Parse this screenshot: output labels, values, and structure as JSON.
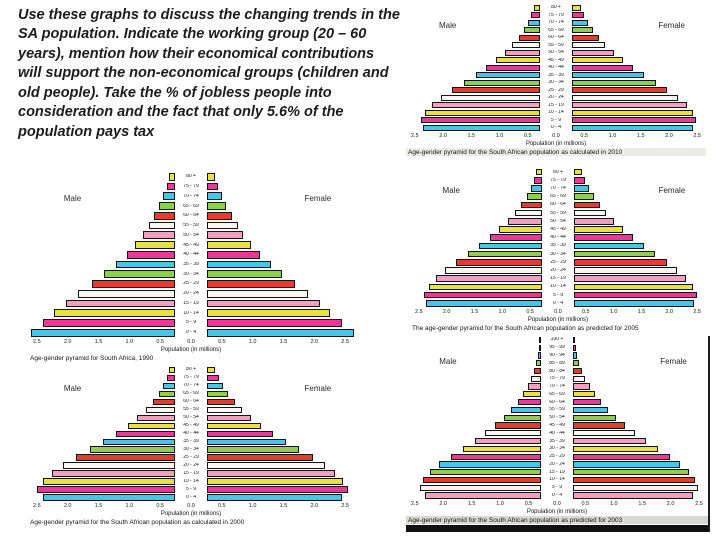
{
  "slide": {
    "question_text": "Use these graphs to discuss the changing trends in the SA population. Indicate the working group (20 – 60 years), mention how their economical contributions will support the non-economical groups (children and old people). Take the % of jobless people into consideration and the fact that only 5.6% of the population pays tax"
  },
  "style": {
    "bar_colors": [
      "#e8e23c",
      "#ea3a96",
      "#44c7e8",
      "#8ed047",
      "#e63b33",
      "#f8f8ee",
      "#f2a0c0"
    ],
    "bar_border": "#141414"
  },
  "chart_data": [
    {
      "type": "bar",
      "subtype": "population-pyramid",
      "caption": "Age-gender pyramid for South Africa, 1990",
      "male_label": "Male",
      "female_label": "Female",
      "xlabel": "Population (in millions)",
      "xmax": 2.5,
      "xticks": [
        "2.5",
        "2.0",
        "1.5",
        "1.0",
        "0.5",
        "0.0",
        "0.5",
        "1.0",
        "1.5",
        "2.0",
        "2.5"
      ],
      "age_groups": [
        "80 +",
        "75 - 79",
        "70 - 74",
        "65 - 69",
        "60 - 64",
        "55 - 59",
        "50 - 54",
        "45 - 49",
        "40 - 44",
        "35 - 39",
        "30 - 34",
        "25 - 29",
        "20 - 24",
        "15 - 19",
        "10 - 14",
        "5 - 9",
        "0 - 4"
      ],
      "series": [
        {
          "name": "Male",
          "values": [
            0.1,
            0.14,
            0.2,
            0.28,
            0.36,
            0.45,
            0.55,
            0.68,
            0.82,
            1.0,
            1.2,
            1.42,
            1.65,
            1.85,
            2.05,
            2.25,
            2.45
          ]
        },
        {
          "name": "Female",
          "values": [
            0.14,
            0.18,
            0.25,
            0.33,
            0.42,
            0.52,
            0.62,
            0.75,
            0.9,
            1.08,
            1.28,
            1.5,
            1.72,
            1.92,
            2.1,
            2.3,
            2.5
          ]
        }
      ]
    },
    {
      "type": "bar",
      "subtype": "population-pyramid",
      "caption": "Age-gender pyramid for the South African population as calculated in 2000",
      "male_label": "Male",
      "female_label": "Female",
      "xlabel": "Population (in millions)",
      "xmax": 2.5,
      "xticks": [
        "2.5",
        "2.0",
        "1.5",
        "1.0",
        "0.5",
        "0.0",
        "0.5",
        "1.0",
        "1.5",
        "2.0",
        "2.5"
      ],
      "age_groups": [
        "80 +",
        "75 - 79",
        "70 - 74",
        "65 - 69",
        "60 - 64",
        "55 - 59",
        "50 - 54",
        "45 - 49",
        "40 - 44",
        "35 - 39",
        "30 - 34",
        "25 - 29",
        "20 - 24",
        "15 - 19",
        "10 - 14",
        "5 - 9",
        "0 - 4"
      ],
      "series": [
        {
          "name": "Male",
          "values": [
            0.1,
            0.14,
            0.2,
            0.28,
            0.38,
            0.5,
            0.64,
            0.8,
            1.0,
            1.22,
            1.45,
            1.68,
            1.9,
            2.1,
            2.25,
            2.35,
            2.25
          ]
        },
        {
          "name": "Female",
          "values": [
            0.14,
            0.2,
            0.27,
            0.36,
            0.47,
            0.6,
            0.75,
            0.92,
            1.12,
            1.34,
            1.57,
            1.8,
            2.0,
            2.18,
            2.32,
            2.4,
            2.3
          ]
        }
      ]
    },
    {
      "type": "bar",
      "subtype": "population-pyramid",
      "caption": "Age-gender pyramid for the South African population as calculated in 2010",
      "male_label": "Male",
      "female_label": "Female",
      "xlabel": "Population (in millions)",
      "xmax": 2.5,
      "xticks": [
        "2.5",
        "2.0",
        "1.5",
        "1.0",
        "0.5",
        "0.0",
        "0.5",
        "1.0",
        "1.5",
        "2.0",
        "2.5"
      ],
      "age_groups": [
        "80 +",
        "75 - 79",
        "70 - 74",
        "65 - 69",
        "60 - 64",
        "55 - 59",
        "50 - 54",
        "45 - 49",
        "40 - 44",
        "35 - 39",
        "30 - 34",
        "25 - 29",
        "20 - 24",
        "15 - 19",
        "10 - 14",
        "5 - 9",
        "0 - 4"
      ],
      "series": [
        {
          "name": "Male",
          "values": [
            0.12,
            0.16,
            0.22,
            0.3,
            0.4,
            0.52,
            0.66,
            0.82,
            1.0,
            1.2,
            1.42,
            1.64,
            1.85,
            2.02,
            2.15,
            2.22,
            2.18
          ]
        },
        {
          "name": "Female",
          "values": [
            0.16,
            0.22,
            0.3,
            0.4,
            0.5,
            0.62,
            0.78,
            0.95,
            1.14,
            1.35,
            1.56,
            1.78,
            1.98,
            2.14,
            2.26,
            2.32,
            2.26
          ]
        }
      ]
    },
    {
      "type": "bar",
      "subtype": "population-pyramid",
      "caption": "The age-gender pyramid for the South African population as predicted for 2005",
      "male_label": "Male",
      "female_label": "Female",
      "xlabel": "Population (in millions)",
      "xmax": 2.5,
      "xticks": [
        "2.5",
        "2.0",
        "1.5",
        "1.0",
        "0.5",
        "0.0",
        "0.5",
        "1.0",
        "1.5",
        "2.0",
        "2.5"
      ],
      "age_groups": [
        "80 +",
        "75 - 79",
        "70 - 74",
        "65 - 69",
        "60 - 64",
        "55 - 59",
        "50 - 54",
        "45 - 49",
        "40 - 44",
        "35 - 39",
        "30 - 34",
        "25 - 29",
        "20 - 24",
        "15 - 19",
        "10 - 14",
        "5 - 9",
        "0 - 4"
      ],
      "series": [
        {
          "name": "Male",
          "values": [
            0.11,
            0.15,
            0.21,
            0.29,
            0.39,
            0.51,
            0.65,
            0.81,
            0.99,
            1.19,
            1.4,
            1.62,
            1.83,
            2.0,
            2.14,
            2.24,
            2.2
          ]
        },
        {
          "name": "Female",
          "values": [
            0.15,
            0.21,
            0.28,
            0.38,
            0.49,
            0.61,
            0.76,
            0.93,
            1.12,
            1.32,
            1.54,
            1.76,
            1.96,
            2.12,
            2.25,
            2.33,
            2.28
          ]
        }
      ]
    },
    {
      "type": "bar",
      "subtype": "population-pyramid",
      "caption": "Age-gender pyramid for the South African population as predicted for 2003",
      "male_label": "Male",
      "female_label": "Female",
      "xlabel": "Population (in millions)",
      "xmax": 2.5,
      "xticks": [
        "2.5",
        "2.0",
        "1.5",
        "1.0",
        "0.5",
        "0.0",
        "0.5",
        "1.0",
        "1.5",
        "2.0",
        "2.5"
      ],
      "age_groups": [
        "100 +",
        "95 - 99",
        "90 - 94",
        "85 - 89",
        "80 - 84",
        "75 - 79",
        "70 - 74",
        "65 - 69",
        "60 - 64",
        "55 - 59",
        "50 - 54",
        "45 - 49",
        "40 - 44",
        "35 - 39",
        "30 - 34",
        "25 - 29",
        "20 - 24",
        "15 - 19",
        "10 - 14",
        "5 - 9",
        "0 - 4"
      ],
      "series": [
        {
          "name": "Male",
          "values": [
            0.02,
            0.04,
            0.06,
            0.09,
            0.13,
            0.18,
            0.25,
            0.33,
            0.43,
            0.55,
            0.69,
            0.85,
            1.03,
            1.23,
            1.45,
            1.67,
            1.88,
            2.05,
            2.18,
            2.25,
            2.15
          ]
        },
        {
          "name": "Female",
          "values": [
            0.03,
            0.05,
            0.08,
            0.12,
            0.17,
            0.23,
            0.31,
            0.4,
            0.51,
            0.64,
            0.79,
            0.96,
            1.15,
            1.36,
            1.58,
            1.79,
            1.99,
            2.15,
            2.26,
            2.32,
            2.22
          ]
        }
      ]
    }
  ]
}
